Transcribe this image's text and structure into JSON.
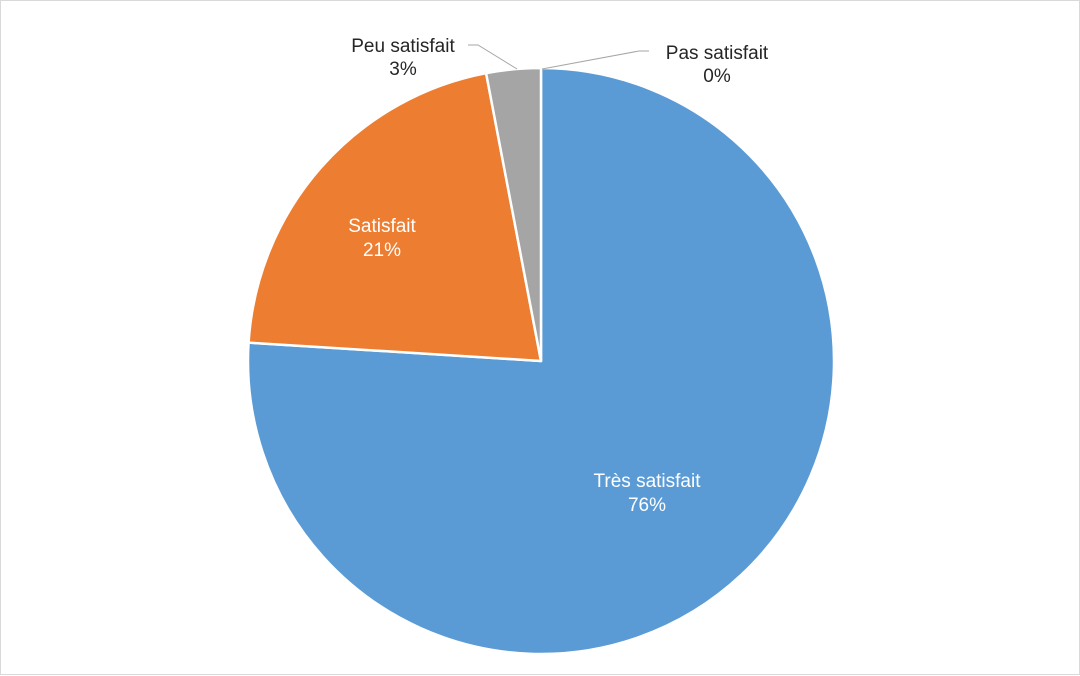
{
  "chart_data": {
    "type": "pie",
    "title": "",
    "categories": [
      "Très satisfait",
      "Satisfait",
      "Peu satisfait",
      "Pas satisfait"
    ],
    "values": [
      76,
      21,
      3,
      0
    ],
    "data_labels": [
      "76%",
      "21%",
      "3%",
      "0%"
    ],
    "start_angle": "12 o'clock",
    "direction": "clockwise",
    "legend": "none",
    "label_position": "inside for large slices, outside with leader lines for small slices",
    "colors": [
      "#5B9BD5",
      "#ED7D31",
      "#A5A5A5",
      "#FFC000"
    ]
  }
}
